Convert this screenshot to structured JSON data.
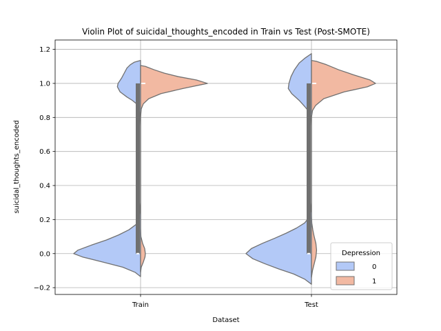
{
  "chart_data": {
    "type": "violin",
    "title": "Violin Plot of suicidal_thoughts_encoded in Train vs Test (Post-SMOTE)",
    "xlabel": "Dataset",
    "ylabel": "suicidal_thoughts_encoded",
    "categories": [
      "Train",
      "Test"
    ],
    "ylim": [
      -0.24,
      1.255
    ],
    "yticks": [
      -0.2,
      0.0,
      0.2,
      0.4,
      0.6,
      0.8,
      1.0,
      1.2
    ],
    "ytick_labels": [
      "−0.2",
      "0.0",
      "0.2",
      "0.4",
      "0.6",
      "0.8",
      "1.0",
      "1.2"
    ],
    "grid": true,
    "legend": {
      "title": "Depression",
      "position": "lower right",
      "entries": [
        {
          "label": "0",
          "color": "#b3c9f7"
        },
        {
          "label": "1",
          "color": "#f2b9a2"
        }
      ]
    },
    "series": [
      {
        "name": "0",
        "side": "left",
        "color": "#b3c9f7",
        "violins": [
          {
            "category": "Train",
            "density": [
              [
                -0.135,
                0.0
              ],
              [
                -0.11,
                0.08
              ],
              [
                -0.08,
                0.26
              ],
              [
                -0.05,
                0.55
              ],
              [
                -0.02,
                0.85
              ],
              [
                0.0,
                0.98
              ],
              [
                0.02,
                0.92
              ],
              [
                0.05,
                0.72
              ],
              [
                0.08,
                0.5
              ],
              [
                0.11,
                0.32
              ],
              [
                0.14,
                0.17
              ],
              [
                0.17,
                0.07
              ],
              [
                0.2,
                0.025
              ],
              [
                0.25,
                0.01
              ],
              [
                0.3,
                0.0
              ],
              [
                0.75,
                0.0
              ],
              [
                0.8,
                0.005
              ],
              [
                0.85,
                0.02
              ],
              [
                0.88,
                0.06
              ],
              [
                0.9,
                0.12
              ],
              [
                0.92,
                0.2
              ],
              [
                0.95,
                0.3
              ],
              [
                0.98,
                0.34
              ],
              [
                1.0,
                0.33
              ],
              [
                1.03,
                0.28
              ],
              [
                1.06,
                0.24
              ],
              [
                1.09,
                0.2
              ],
              [
                1.11,
                0.15
              ],
              [
                1.125,
                0.09
              ],
              [
                1.135,
                0.0
              ]
            ]
          },
          {
            "category": "Test",
            "density": [
              [
                -0.18,
                0.0
              ],
              [
                -0.15,
                0.1
              ],
              [
                -0.12,
                0.26
              ],
              [
                -0.09,
                0.48
              ],
              [
                -0.06,
                0.68
              ],
              [
                -0.03,
                0.86
              ],
              [
                0.0,
                0.96
              ],
              [
                0.03,
                0.88
              ],
              [
                0.06,
                0.72
              ],
              [
                0.09,
                0.54
              ],
              [
                0.12,
                0.37
              ],
              [
                0.15,
                0.22
              ],
              [
                0.18,
                0.1
              ],
              [
                0.21,
                0.04
              ],
              [
                0.25,
                0.01
              ],
              [
                0.3,
                0.0
              ],
              [
                0.75,
                0.0
              ],
              [
                0.8,
                0.005
              ],
              [
                0.83,
                0.03
              ],
              [
                0.86,
                0.09
              ],
              [
                0.9,
                0.18
              ],
              [
                0.94,
                0.29
              ],
              [
                0.97,
                0.34
              ],
              [
                1.0,
                0.33
              ],
              [
                1.04,
                0.3
              ],
              [
                1.08,
                0.25
              ],
              [
                1.12,
                0.18
              ],
              [
                1.15,
                0.09
              ],
              [
                1.175,
                0.0
              ]
            ]
          }
        ],
        "box": [
          {
            "category": "Train",
            "q1": 0.0,
            "median": 0.0,
            "q3": 1.0,
            "whisker_low": 0.0,
            "whisker_high": 1.0
          },
          {
            "category": "Test",
            "q1": 0.0,
            "median": 0.0,
            "q3": 1.0,
            "whisker_low": 0.0,
            "whisker_high": 1.0
          }
        ]
      },
      {
        "name": "1",
        "side": "right",
        "color": "#f2b9a2",
        "violins": [
          {
            "category": "Train",
            "density": [
              [
                -0.11,
                0.0
              ],
              [
                -0.08,
                0.01
              ],
              [
                -0.05,
                0.04
              ],
              [
                -0.02,
                0.065
              ],
              [
                0.0,
                0.07
              ],
              [
                0.03,
                0.06
              ],
              [
                0.06,
                0.03
              ],
              [
                0.1,
                0.005
              ],
              [
                0.15,
                0.0
              ],
              [
                0.8,
                0.0
              ],
              [
                0.85,
                0.01
              ],
              [
                0.88,
                0.04
              ],
              [
                0.91,
                0.12
              ],
              [
                0.94,
                0.3
              ],
              [
                0.97,
                0.62
              ],
              [
                1.0,
                0.98
              ],
              [
                1.02,
                0.82
              ],
              [
                1.04,
                0.55
              ],
              [
                1.06,
                0.35
              ],
              [
                1.08,
                0.2
              ],
              [
                1.1,
                0.07
              ],
              [
                1.105,
                0.0
              ]
            ]
          },
          {
            "category": "Test",
            "density": [
              [
                -0.14,
                0.0
              ],
              [
                -0.1,
                0.015
              ],
              [
                -0.06,
                0.04
              ],
              [
                -0.02,
                0.065
              ],
              [
                0.02,
                0.075
              ],
              [
                0.06,
                0.065
              ],
              [
                0.1,
                0.04
              ],
              [
                0.14,
                0.02
              ],
              [
                0.18,
                0.005
              ],
              [
                0.22,
                0.0
              ],
              [
                0.8,
                0.0
              ],
              [
                0.84,
                0.015
              ],
              [
                0.87,
                0.06
              ],
              [
                0.91,
                0.18
              ],
              [
                0.95,
                0.48
              ],
              [
                0.98,
                0.82
              ],
              [
                1.0,
                0.94
              ],
              [
                1.02,
                0.86
              ],
              [
                1.05,
                0.62
              ],
              [
                1.08,
                0.4
              ],
              [
                1.11,
                0.22
              ],
              [
                1.13,
                0.07
              ],
              [
                1.135,
                0.0
              ]
            ]
          }
        ],
        "box": [
          {
            "category": "Train",
            "q1": 1.0,
            "median": 1.0,
            "q3": 1.0,
            "whisker_low": 1.0,
            "whisker_high": 1.0
          },
          {
            "category": "Test",
            "q1": 1.0,
            "median": 1.0,
            "q3": 1.0,
            "whisker_low": 1.0,
            "whisker_high": 1.0
          }
        ]
      }
    ]
  }
}
